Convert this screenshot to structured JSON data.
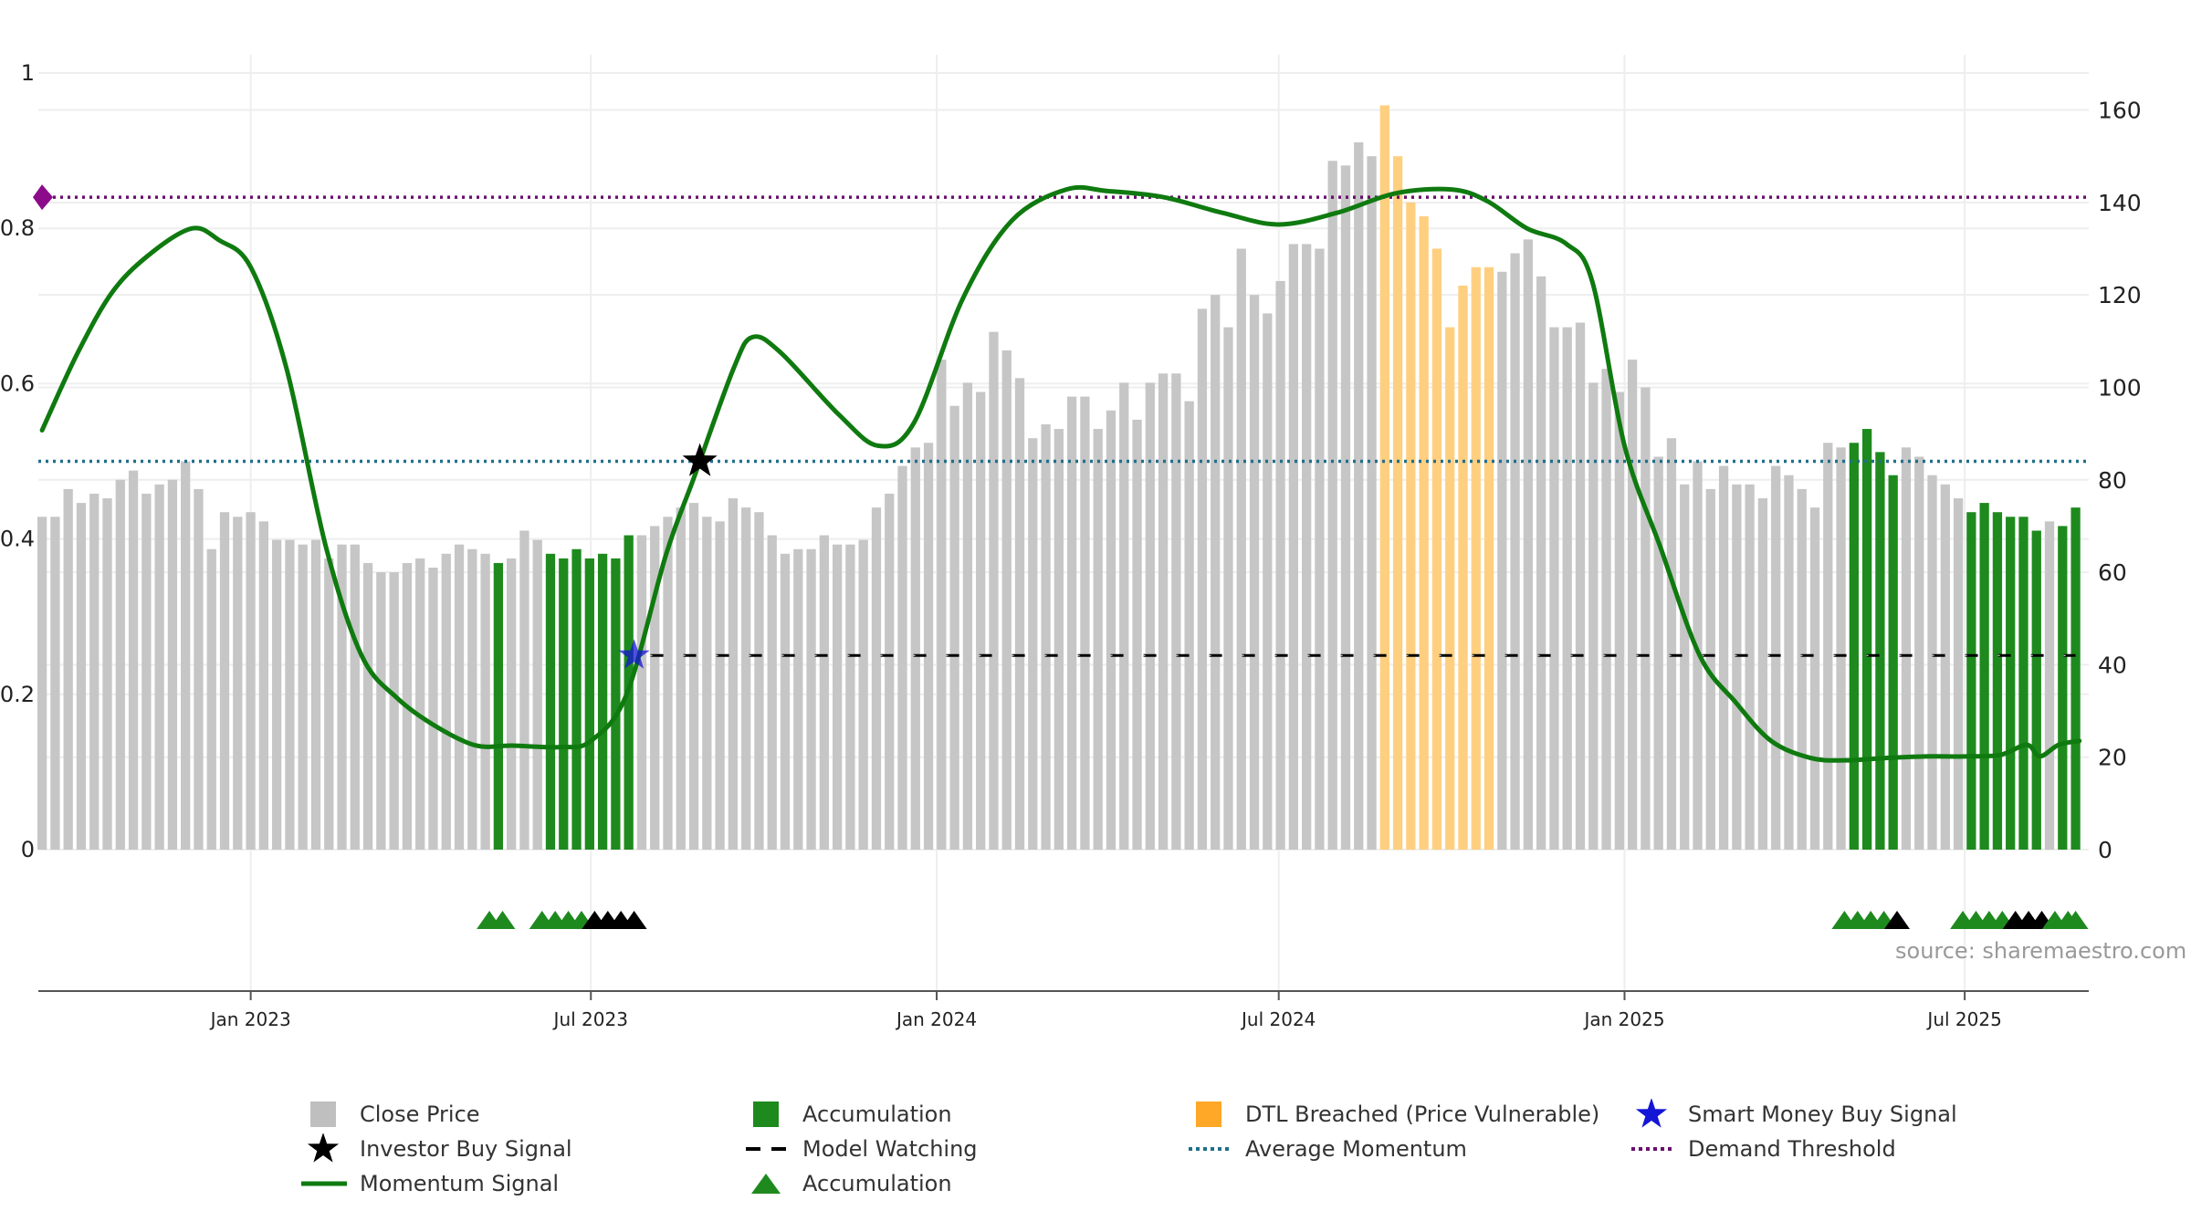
{
  "chart_data": {
    "type": "bar",
    "title": "",
    "left_axis": {
      "ticks": [
        "0",
        "0.2",
        "0.4",
        "0.6",
        "0.8",
        "1"
      ],
      "range": [
        0,
        1
      ]
    },
    "right_axis": {
      "ticks": [
        "0",
        "20",
        "40",
        "60",
        "80",
        "100",
        "120",
        "140",
        "160"
      ],
      "range": [
        0,
        168
      ]
    },
    "x_ticks": [
      "Jan 2023",
      "Jul 2023",
      "Jan 2024",
      "Jul 2024",
      "Jan 2025",
      "Jul 2025"
    ],
    "x_range": [
      "2022-09-10",
      "2025-09-05"
    ],
    "x_tick_dates": [
      "2023-01-01",
      "2023-07-01",
      "2024-01-01",
      "2024-07-01",
      "2025-01-01",
      "2025-07-01"
    ],
    "close_price": {
      "start": "2022-09-12",
      "end": "2025-08-29",
      "frequency": "weekly",
      "values": [
        72,
        72,
        78,
        75,
        77,
        76,
        80,
        82,
        77,
        79,
        80,
        84,
        78,
        65,
        73,
        72,
        73,
        71,
        67,
        67,
        66,
        67,
        63,
        66,
        66,
        62,
        60,
        60,
        62,
        63,
        61,
        64,
        66,
        65,
        64,
        62,
        63,
        69,
        67,
        64,
        63,
        65,
        63,
        64,
        63,
        68,
        68,
        70,
        72,
        74,
        75,
        72,
        71,
        76,
        74,
        73,
        68,
        64,
        65,
        65,
        68,
        66,
        66,
        67,
        74,
        77,
        83,
        87,
        88,
        106,
        96,
        101,
        99,
        112,
        108,
        102,
        89,
        92,
        91,
        98,
        98,
        91,
        95,
        101,
        93,
        101,
        103,
        103,
        97,
        117,
        120,
        113,
        130,
        120,
        116,
        123,
        131,
        131,
        130,
        149,
        148,
        153,
        150,
        161,
        150,
        140,
        137,
        130,
        113,
        122,
        126,
        126,
        125,
        129,
        132,
        124,
        113,
        113,
        114,
        101,
        104,
        99,
        106,
        100,
        85,
        89,
        79,
        84,
        78,
        83,
        79,
        79,
        76,
        83,
        81,
        78,
        74,
        88,
        87,
        88,
        91,
        86,
        81,
        87,
        85,
        81,
        79,
        76,
        73,
        75,
        73,
        72,
        72,
        69,
        71,
        70,
        74
      ],
      "highlights": [
        {
          "category": "Accumulation",
          "from": "2023-05-08",
          "to": "2023-05-15"
        },
        {
          "category": "Accumulation",
          "from": "2023-06-05",
          "to": "2023-07-24"
        },
        {
          "category": "DTL Breached",
          "from": "2024-08-26",
          "to": "2024-10-21"
        },
        {
          "category": "Accumulation",
          "from": "2025-04-28",
          "to": "2025-05-26"
        },
        {
          "category": "Accumulation",
          "from": "2025-06-30",
          "to": "2025-08-11"
        },
        {
          "category": "Accumulation",
          "from": "2025-08-18",
          "to": "2025-08-29"
        }
      ]
    },
    "momentum_signal": [
      [
        "2022-09-12",
        0.54
      ],
      [
        "2022-10-01",
        0.64
      ],
      [
        "2022-10-20",
        0.72
      ],
      [
        "2022-11-10",
        0.77
      ],
      [
        "2022-12-01",
        0.8
      ],
      [
        "2022-12-15",
        0.785
      ],
      [
        "2023-01-01",
        0.75
      ],
      [
        "2023-01-20",
        0.62
      ],
      [
        "2023-02-10",
        0.39
      ],
      [
        "2023-03-01",
        0.25
      ],
      [
        "2023-03-20",
        0.195
      ],
      [
        "2023-04-10",
        0.158
      ],
      [
        "2023-05-01",
        0.134
      ],
      [
        "2023-05-20",
        0.134
      ],
      [
        "2023-06-15",
        0.132
      ],
      [
        "2023-07-01",
        0.14
      ],
      [
        "2023-07-20",
        0.2
      ],
      [
        "2023-08-10",
        0.38
      ],
      [
        "2023-08-25",
        0.48
      ],
      [
        "2023-09-15",
        0.62
      ],
      [
        "2023-09-25",
        0.66
      ],
      [
        "2023-10-10",
        0.64
      ],
      [
        "2023-11-10",
        0.56
      ],
      [
        "2023-12-01",
        0.52
      ],
      [
        "2023-12-20",
        0.55
      ],
      [
        "2024-01-15",
        0.71
      ],
      [
        "2024-02-10",
        0.81
      ],
      [
        "2024-03-10",
        0.85
      ],
      [
        "2024-04-01",
        0.848
      ],
      [
        "2024-05-01",
        0.84
      ],
      [
        "2024-06-01",
        0.82
      ],
      [
        "2024-07-01",
        0.805
      ],
      [
        "2024-08-01",
        0.82
      ],
      [
        "2024-09-01",
        0.845
      ],
      [
        "2024-10-01",
        0.85
      ],
      [
        "2024-10-20",
        0.835
      ],
      [
        "2024-11-10",
        0.8
      ],
      [
        "2024-12-01",
        0.78
      ],
      [
        "2024-12-15",
        0.73
      ],
      [
        "2025-01-01",
        0.52
      ],
      [
        "2025-01-20",
        0.39
      ],
      [
        "2025-02-10",
        0.25
      ],
      [
        "2025-03-01",
        0.19
      ],
      [
        "2025-03-20",
        0.14
      ],
      [
        "2025-04-10",
        0.118
      ],
      [
        "2025-04-28",
        0.115
      ],
      [
        "2025-05-20",
        0.118
      ],
      [
        "2025-06-10",
        0.12
      ],
      [
        "2025-07-01",
        0.12
      ],
      [
        "2025-07-20",
        0.122
      ],
      [
        "2025-08-03",
        0.135
      ],
      [
        "2025-08-10",
        0.12
      ],
      [
        "2025-08-20",
        0.135
      ],
      [
        "2025-08-31",
        0.14
      ]
    ],
    "average_momentum": 0.5,
    "demand_threshold": 0.84,
    "model_watching": {
      "from": "2023-07-24",
      "to": "2025-08-29",
      "price": 42
    },
    "investor_buy_signal": {
      "date": "2023-08-28",
      "value": 0.5
    },
    "smart_money_buy_signal": {
      "date": "2023-07-24",
      "price": 42
    },
    "accumulation_markers": [
      {
        "date": "2023-05-08",
        "color": "green"
      },
      {
        "date": "2023-05-15",
        "color": "green"
      },
      {
        "date": "2023-06-05",
        "color": "green"
      },
      {
        "date": "2023-06-12",
        "color": "green"
      },
      {
        "date": "2023-06-19",
        "color": "green"
      },
      {
        "date": "2023-06-26",
        "color": "green"
      },
      {
        "date": "2023-07-03",
        "color": "black"
      },
      {
        "date": "2023-07-10",
        "color": "black"
      },
      {
        "date": "2023-07-17",
        "color": "black"
      },
      {
        "date": "2023-07-24",
        "color": "black"
      },
      {
        "date": "2025-04-28",
        "color": "green"
      },
      {
        "date": "2025-05-05",
        "color": "green"
      },
      {
        "date": "2025-05-12",
        "color": "green"
      },
      {
        "date": "2025-05-19",
        "color": "green"
      },
      {
        "date": "2025-05-26",
        "color": "black"
      },
      {
        "date": "2025-06-30",
        "color": "green"
      },
      {
        "date": "2025-07-07",
        "color": "green"
      },
      {
        "date": "2025-07-14",
        "color": "green"
      },
      {
        "date": "2025-07-21",
        "color": "green"
      },
      {
        "date": "2025-07-28",
        "color": "black"
      },
      {
        "date": "2025-08-04",
        "color": "black"
      },
      {
        "date": "2025-08-11",
        "color": "black"
      },
      {
        "date": "2025-08-18",
        "color": "green"
      },
      {
        "date": "2025-08-25",
        "color": "green"
      },
      {
        "date": "2025-08-29",
        "color": "green"
      }
    ],
    "colors": {
      "close_price": "#c6c6c6",
      "accumulation": "#1e8a1e",
      "dtl_breached": "#ffcf80",
      "momentum": "#0f7a0f",
      "average_momentum": "#1f6f8b",
      "demand_threshold": "#6a0f6e",
      "smart_money": "#1515d6",
      "grid": "#eeeeee"
    },
    "legend": [
      {
        "label": "Close Price",
        "symbol": "square",
        "color": "#bfbfbf"
      },
      {
        "label": "Accumulation",
        "symbol": "square",
        "color": "#1e8a1e"
      },
      {
        "label": "DTL Breached (Price Vulnerable)",
        "symbol": "square",
        "color": "#ffa726"
      },
      {
        "label": "Smart Money Buy Signal",
        "symbol": "star",
        "color": "#1515d6"
      },
      {
        "label": "Investor Buy Signal",
        "symbol": "star",
        "color": "#000000"
      },
      {
        "label": "Model Watching",
        "symbol": "dash",
        "color": "#000000"
      },
      {
        "label": "Average Momentum",
        "symbol": "dot",
        "color": "#1f6f8b"
      },
      {
        "label": "Demand Threshold",
        "symbol": "dot",
        "color": "#6a0f6e"
      },
      {
        "label": "Momentum Signal",
        "symbol": "line",
        "color": "#0f7a0f"
      },
      {
        "label": "Accumulation",
        "symbol": "triangle",
        "color": "#1e8a1e"
      }
    ],
    "source": "source: sharemaestro.com"
  }
}
